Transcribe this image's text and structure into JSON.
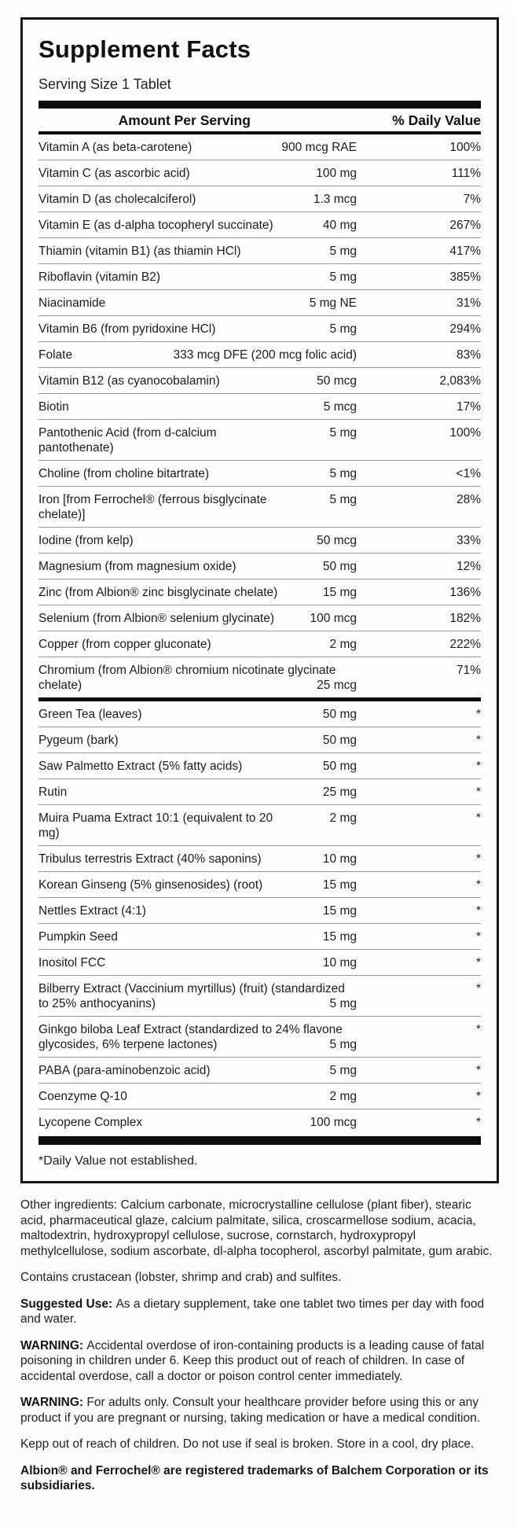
{
  "panel": {
    "title": "Supplement Facts",
    "serving_size": "Serving Size 1 Tablet",
    "columns": {
      "amount": "Amount Per Serving",
      "dv": "% Daily Value"
    },
    "sections": [
      {
        "id": "vitamins-minerals",
        "rows": [
          {
            "name": "Vitamin A (as beta-carotene)",
            "amount": "900 mcg RAE",
            "dv": "100%"
          },
          {
            "name": "Vitamin C (as ascorbic acid)",
            "amount": "100 mg",
            "dv": "111%"
          },
          {
            "name": "Vitamin D (as cholecalciferol)",
            "amount": "1.3 mcg",
            "dv": "7%"
          },
          {
            "name": "Vitamin E (as d-alpha tocopheryl succinate)",
            "amount": "40 mg",
            "dv": "267%"
          },
          {
            "name": "Thiamin (vitamin B1) (as thiamin HCl)",
            "amount": "5 mg",
            "dv": "417%"
          },
          {
            "name": "Riboflavin (vitamin B2)",
            "amount": "5 mg",
            "dv": "385%"
          },
          {
            "name": "Niacinamide",
            "amount": "5 mg NE",
            "dv": "31%"
          },
          {
            "name": "Vitamin B6 (from pyridoxine HCl)",
            "amount": "5 mg",
            "dv": "294%"
          },
          {
            "name": "Folate",
            "amount": "333 mcg DFE (200 mcg folic acid)",
            "dv": "83%"
          },
          {
            "name": "Vitamin B12 (as cyanocobalamin)",
            "amount": "50 mcg",
            "dv": "2,083%"
          },
          {
            "name": "Biotin",
            "amount": "5 mcg",
            "dv": "17%"
          },
          {
            "name": "Pantothenic Acid (from d-calcium pantothenate)",
            "amount": "5 mg",
            "dv": "100%"
          },
          {
            "name": "Choline (from choline bitartrate)",
            "amount": "5 mg",
            "dv": "<1%"
          },
          {
            "name": "Iron [from Ferrochel® (ferrous bisglycinate chelate)]",
            "amount": "5 mg",
            "dv": "28%"
          },
          {
            "name": "Iodine (from kelp)",
            "amount": "50 mcg",
            "dv": "33%"
          },
          {
            "name": "Magnesium (from magnesium oxide)",
            "amount": "50 mg",
            "dv": "12%"
          },
          {
            "name": "Zinc (from Albion® zinc bisglycinate chelate)",
            "amount": "15 mg",
            "dv": "136%"
          },
          {
            "name": "Selenium (from Albion® selenium glycinate)",
            "amount": "100 mcg",
            "dv": "182%"
          },
          {
            "name": "Copper (from copper gluconate)",
            "amount": "2 mg",
            "dv": "222%"
          },
          {
            "name": "Chromium (from Albion® chromium nicotinate glycinate",
            "name2": "chelate)",
            "amount": "25 mcg",
            "dv": "71%"
          }
        ]
      },
      {
        "id": "botanicals",
        "rows": [
          {
            "name": "Green Tea (leaves)",
            "amount": "50 mg",
            "dv": "*"
          },
          {
            "name": "Pygeum (bark)",
            "amount": "50 mg",
            "dv": "*"
          },
          {
            "name": "Saw Palmetto Extract (5% fatty acids)",
            "amount": "50 mg",
            "dv": "*"
          },
          {
            "name": "Rutin",
            "amount": "25 mg",
            "dv": "*"
          },
          {
            "name": "Muira Puama Extract 10:1 (equivalent to 20 mg)",
            "amount": "2 mg",
            "dv": "*"
          },
          {
            "name": "Tribulus terrestris Extract (40% saponins)",
            "amount": "10 mg",
            "dv": "*"
          },
          {
            "name": "Korean Ginseng (5% ginsenosides) (root)",
            "amount": "15 mg",
            "dv": "*"
          },
          {
            "name": "Nettles Extract (4:1)",
            "amount": "15 mg",
            "dv": "*"
          },
          {
            "name": "Pumpkin Seed",
            "amount": "15 mg",
            "dv": "*"
          },
          {
            "name": "Inositol FCC",
            "amount": "10 mg",
            "dv": "*"
          },
          {
            "name": "Bilberry Extract (Vaccinium myrtillus) (fruit) (standardized",
            "name2": "to 25% anthocyanins)",
            "amount": "5 mg",
            "dv": "*"
          },
          {
            "name": "Ginkgo biloba Leaf Extract (standardized to 24% flavone",
            "name2": "glycosides, 6% terpene lactones)",
            "amount": "5 mg",
            "dv": "*"
          },
          {
            "name": "PABA (para-aminobenzoic acid)",
            "amount": "5 mg",
            "dv": "*"
          },
          {
            "name": "Coenzyme Q-10",
            "amount": "2 mg",
            "dv": "*"
          },
          {
            "name": "Lycopene Complex",
            "amount": "100 mcg",
            "dv": "*"
          }
        ]
      }
    ],
    "footnote": "*Daily Value not established."
  },
  "footer": {
    "paragraphs": [
      {
        "label": "",
        "text": "Other ingredients: Calcium carbonate, microcrystalline cellulose (plant fiber), stearic acid, pharmaceutical glaze, calcium palmitate, silica, croscarmellose sodium, acacia, maltodextrin, hydroxypropyl cellulose, sucrose, cornstarch, hydroxypropyl methylcellulose, sodium ascorbate, dl-alpha tocopherol, ascorbyl palmitate, gum arabic.",
        "bold": false
      },
      {
        "label": "",
        "text": "Contains crustacean (lobster, shrimp and crab) and sulfites.",
        "bold": false
      },
      {
        "label": "Suggested Use:",
        "text": "As a dietary supplement, take one tablet two times per day with food and water.",
        "bold": false
      },
      {
        "label": "WARNING:",
        "text": "Accidental overdose of iron-containing products is a leading cause of fatal poisoning in children under 6. Keep this product out of reach of children. In case of accidental overdose, call a doctor or poison control center immediately.",
        "bold": false
      },
      {
        "label": "WARNING:",
        "text": "For adults only. Consult your healthcare provider before using this or any product if you are pregnant or nursing, taking medication or have a medical condition.",
        "bold": false
      },
      {
        "label": "",
        "text": "Kepp out of reach of children. Do not use if seal is broken. Store in a cool, dry place.",
        "bold": false
      },
      {
        "label": "",
        "text": "Albion® and Ferrochel® are registered trademarks of Balchem Corporation or its subsidiaries.",
        "bold": true
      }
    ]
  }
}
